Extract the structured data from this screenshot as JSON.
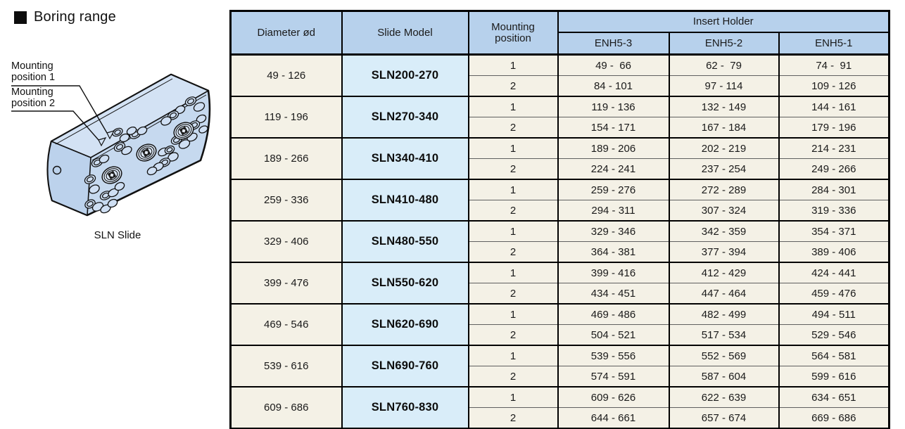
{
  "header": {
    "section_title": "Boring range"
  },
  "illustration": {
    "label_mounting_1": "Mounting position 1",
    "label_mounting_2": "Mounting position 2",
    "caption": "SLN Slide"
  },
  "colors": {
    "table_header_bg": "#b7d1ec",
    "slide_model_bg": "#d9edf9",
    "body_cell_bg": "#f4f1e6",
    "slide_body_fill": "#c6d9ef",
    "border": "#000000"
  },
  "table": {
    "col_headers": {
      "diameter": "Diameter ød",
      "slide_model": "Slide Model",
      "mounting_position": "Mounting position",
      "insert_holder": "Insert Holder",
      "enh_columns": [
        "ENH5-3",
        "ENH5-2",
        "ENH5-1"
      ]
    },
    "groups": [
      {
        "diameter": "49 - 126",
        "model": "SLN200-270",
        "rows": [
          {
            "position": "1",
            "values": [
              "49 -  66",
              "62 -  79",
              "74 -  91"
            ]
          },
          {
            "position": "2",
            "values": [
              "84 - 101",
              "97 - 114",
              "109 - 126"
            ]
          }
        ]
      },
      {
        "diameter": "119 - 196",
        "model": "SLN270-340",
        "rows": [
          {
            "position": "1",
            "values": [
              "119 - 136",
              "132 - 149",
              "144 - 161"
            ]
          },
          {
            "position": "2",
            "values": [
              "154 - 171",
              "167 - 184",
              "179 - 196"
            ]
          }
        ]
      },
      {
        "diameter": "189 - 266",
        "model": "SLN340-410",
        "rows": [
          {
            "position": "1",
            "values": [
              "189 - 206",
              "202 - 219",
              "214 - 231"
            ]
          },
          {
            "position": "2",
            "values": [
              "224 - 241",
              "237 - 254",
              "249 - 266"
            ]
          }
        ]
      },
      {
        "diameter": "259 - 336",
        "model": "SLN410-480",
        "rows": [
          {
            "position": "1",
            "values": [
              "259 - 276",
              "272 - 289",
              "284 - 301"
            ]
          },
          {
            "position": "2",
            "values": [
              "294 - 311",
              "307 - 324",
              "319 - 336"
            ]
          }
        ]
      },
      {
        "diameter": "329 - 406",
        "model": "SLN480-550",
        "rows": [
          {
            "position": "1",
            "values": [
              "329 - 346",
              "342 - 359",
              "354 - 371"
            ]
          },
          {
            "position": "2",
            "values": [
              "364 - 381",
              "377 - 394",
              "389 - 406"
            ]
          }
        ]
      },
      {
        "diameter": "399 - 476",
        "model": "SLN550-620",
        "rows": [
          {
            "position": "1",
            "values": [
              "399 - 416",
              "412 - 429",
              "424 - 441"
            ]
          },
          {
            "position": "2",
            "values": [
              "434 - 451",
              "447 - 464",
              "459 - 476"
            ]
          }
        ]
      },
      {
        "diameter": "469 - 546",
        "model": "SLN620-690",
        "rows": [
          {
            "position": "1",
            "values": [
              "469 - 486",
              "482 - 499",
              "494 - 511"
            ]
          },
          {
            "position": "2",
            "values": [
              "504 - 521",
              "517 - 534",
              "529 - 546"
            ]
          }
        ]
      },
      {
        "diameter": "539 - 616",
        "model": "SLN690-760",
        "rows": [
          {
            "position": "1",
            "values": [
              "539 - 556",
              "552 - 569",
              "564 - 581"
            ]
          },
          {
            "position": "2",
            "values": [
              "574 - 591",
              "587 - 604",
              "599 - 616"
            ]
          }
        ]
      },
      {
        "diameter": "609 - 686",
        "model": "SLN760-830",
        "rows": [
          {
            "position": "1",
            "values": [
              "609 - 626",
              "622 - 639",
              "634 - 651"
            ]
          },
          {
            "position": "2",
            "values": [
              "644 - 661",
              "657 - 674",
              "669 - 686"
            ]
          }
        ]
      }
    ]
  }
}
